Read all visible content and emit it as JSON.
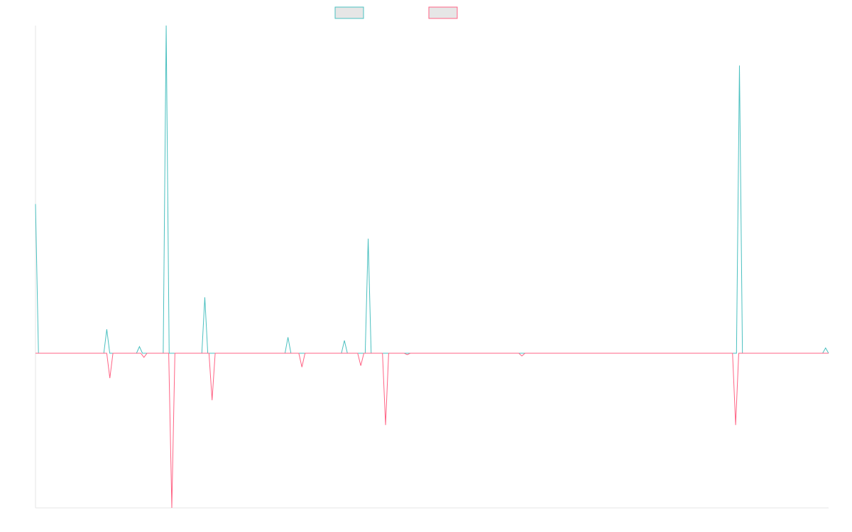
{
  "chart_data": {
    "type": "line",
    "title": "",
    "xlabel": "",
    "ylabel": "",
    "grid": false,
    "legend_position": "top-center",
    "series": [
      {
        "name": "",
        "color": "#4bc0c0",
        "fill": "#e6e6e6",
        "values": [
          0.56,
          0,
          0,
          0,
          0,
          0,
          0,
          0,
          0,
          0,
          0,
          0,
          0,
          0,
          0,
          0,
          0,
          0,
          0,
          0,
          0,
          0,
          0,
          0,
          0.09,
          0,
          0,
          0,
          0,
          0,
          0,
          0,
          0,
          0,
          0,
          0.025,
          0,
          0,
          0,
          0,
          0,
          0,
          0,
          0,
          1.23,
          0,
          0,
          0,
          0,
          0,
          0,
          0,
          0,
          0,
          0,
          0,
          0,
          0.21,
          0,
          0,
          0,
          0,
          0,
          0,
          0,
          0,
          0,
          0,
          0,
          0,
          0,
          0,
          0,
          0,
          0,
          0,
          0,
          0,
          0,
          0,
          0,
          0,
          0,
          0,
          0,
          0.06,
          0,
          0,
          0,
          0,
          0,
          0,
          0,
          0,
          0,
          0,
          0,
          0,
          0,
          0,
          0,
          0,
          0,
          0,
          0.048,
          0,
          0,
          0,
          0,
          0,
          0,
          0,
          0.43,
          0,
          0,
          0,
          0,
          0,
          0,
          0.0,
          0,
          0,
          0,
          0,
          0,
          0,
          0,
          0,
          0,
          0,
          0,
          0,
          0,
          0,
          0,
          0,
          0,
          0,
          0,
          0,
          0,
          0,
          0,
          0,
          0,
          0,
          0,
          0,
          0,
          0,
          0,
          0,
          0,
          0,
          0,
          0,
          0,
          0,
          0,
          0,
          0,
          0,
          0,
          0,
          0,
          0,
          0,
          0,
          0,
          0,
          0,
          0,
          0,
          0,
          0,
          0,
          0,
          0,
          0,
          0,
          0,
          0,
          0,
          0,
          0,
          0,
          0,
          0,
          0,
          0,
          0,
          0,
          0,
          0,
          0,
          0,
          0,
          0,
          0,
          0,
          0,
          0,
          0,
          0,
          0,
          0,
          0,
          0,
          0,
          0,
          0,
          0,
          0,
          0,
          0,
          0,
          0,
          0,
          0,
          0,
          0,
          0,
          0,
          0,
          0,
          0,
          0,
          0,
          0,
          0,
          0,
          0,
          0,
          0,
          0,
          0,
          0,
          1.08,
          0,
          0,
          0,
          0,
          0,
          0,
          0,
          0,
          0,
          0,
          0,
          0,
          0,
          0,
          0,
          0,
          0,
          0,
          0,
          0,
          0,
          0,
          0,
          0,
          0,
          0,
          0,
          0,
          0.02,
          0
        ]
      },
      {
        "name": "",
        "color": "#ff6384",
        "fill": "#e6e6e6",
        "values": [
          0,
          0,
          0,
          0,
          0,
          0,
          0,
          0,
          0,
          0,
          0,
          0,
          0,
          0,
          0,
          0,
          0,
          0,
          0,
          0,
          0,
          0,
          0,
          0,
          -0.09,
          0,
          0,
          0,
          0,
          0,
          0,
          0,
          0,
          0,
          0,
          -0.015,
          0,
          0,
          0,
          0,
          0,
          0,
          0,
          0,
          -0.56,
          0,
          0,
          0,
          0,
          0,
          0,
          0,
          0,
          0,
          0,
          0,
          0,
          -0.17,
          0,
          0,
          0,
          0,
          0,
          0,
          0,
          0,
          0,
          0,
          0,
          0,
          0,
          0,
          0,
          0,
          0,
          0,
          0,
          0,
          0,
          0,
          0,
          0,
          0,
          0,
          0,
          0,
          -0.05,
          0,
          0,
          0,
          0,
          0,
          0,
          0,
          0,
          0,
          0,
          0,
          0,
          0,
          0,
          0,
          0,
          0,
          0,
          -0.045,
          0,
          0,
          0,
          0,
          0,
          0,
          0,
          -0.26,
          0,
          0,
          0,
          0,
          0,
          0,
          -0.005,
          0,
          0,
          0,
          0,
          0,
          0,
          0,
          0,
          0,
          0,
          0,
          0,
          0,
          0,
          0,
          0,
          0,
          0,
          0,
          0,
          0,
          0,
          0,
          0,
          0,
          0,
          0,
          0,
          0,
          0,
          0,
          0,
          0,
          0,
          0,
          0,
          -0.01,
          0,
          0,
          0,
          0,
          0,
          0,
          0,
          0,
          0,
          0,
          0,
          0,
          0,
          0,
          0,
          0,
          0,
          0,
          0,
          0,
          0,
          0,
          0,
          0,
          0,
          0,
          0,
          0,
          0,
          0,
          0,
          0,
          0,
          0,
          0,
          0,
          0,
          0,
          0,
          0,
          0,
          0,
          0,
          0,
          0,
          0,
          0,
          0,
          0,
          0,
          0,
          0,
          0,
          0,
          0,
          0,
          0,
          0,
          0,
          0,
          0,
          0,
          0,
          0,
          0,
          0,
          0,
          0,
          -0.26,
          0,
          0,
          0,
          0,
          0,
          0,
          0,
          0,
          0,
          0,
          0,
          0,
          0,
          0,
          0,
          0,
          0,
          0,
          0,
          0,
          0,
          0,
          0,
          0,
          0,
          0,
          0,
          0,
          0,
          0
        ]
      }
    ],
    "ylim": [
      -0.56,
      1.23
    ]
  }
}
